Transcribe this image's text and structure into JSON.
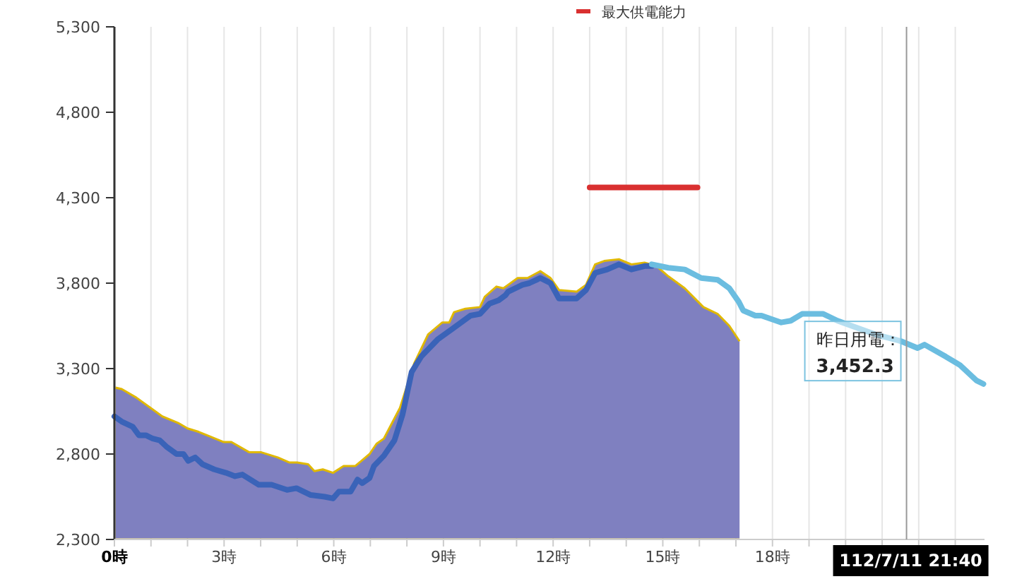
{
  "chart_data": {
    "type": "area",
    "xlim": [
      0,
      23.8
    ],
    "ylim": [
      2300,
      5300
    ],
    "yticks": [
      {
        "value": 2300,
        "label": "2,300"
      },
      {
        "value": 2800,
        "label": "2,800"
      },
      {
        "value": 3300,
        "label": "3,300"
      },
      {
        "value": 3800,
        "label": "3,800"
      },
      {
        "value": 4300,
        "label": "4,300"
      },
      {
        "value": 4800,
        "label": "4,800"
      },
      {
        "value": 5300,
        "label": "5,300"
      }
    ],
    "xticks": [
      {
        "value": 0,
        "label": "0時"
      },
      {
        "value": 1,
        "label": null
      },
      {
        "value": 2,
        "label": null
      },
      {
        "value": 3,
        "label": "3時"
      },
      {
        "value": 4,
        "label": null
      },
      {
        "value": 5,
        "label": null
      },
      {
        "value": 6,
        "label": "6時"
      },
      {
        "value": 7,
        "label": null
      },
      {
        "value": 8,
        "label": null
      },
      {
        "value": 9,
        "label": "9時"
      },
      {
        "value": 10,
        "label": null
      },
      {
        "value": 11,
        "label": null
      },
      {
        "value": 12,
        "label": "12時"
      },
      {
        "value": 13,
        "label": null
      },
      {
        "value": 14,
        "label": null
      },
      {
        "value": 15,
        "label": "15時"
      },
      {
        "value": 16,
        "label": null
      },
      {
        "value": 17,
        "label": null
      },
      {
        "value": 18,
        "label": "18時"
      },
      {
        "value": 19,
        "label": null
      },
      {
        "value": 20,
        "label": null
      },
      {
        "value": 21,
        "label": null
      },
      {
        "value": 22,
        "label": null
      },
      {
        "value": 23,
        "label": null
      }
    ],
    "grid": "x",
    "legend": "top",
    "marker": "none",
    "series": [
      {
        "color": "#7f80c0",
        "x": [
          0,
          0.2,
          0.6,
          0.99,
          1.31,
          1.76,
          2.0,
          2.3,
          2.53,
          2.99,
          3.2,
          3.69,
          4.02,
          4.47,
          4.79,
          5.0,
          5.3,
          5.47,
          5.7,
          5.98,
          6.27,
          6.59,
          6.98,
          7.17,
          7.37,
          7.81,
          8.2,
          8.58,
          8.97,
          9.16,
          9.29,
          9.6,
          10.0,
          10.13,
          10.45,
          10.64,
          10.77,
          11.03,
          11.3,
          11.65,
          11.93,
          12.16,
          12.64,
          12.9,
          13.15,
          13.4,
          13.8,
          14.14,
          14.5,
          14.83,
          15.15,
          15.6,
          16.11,
          16.5,
          16.82,
          17.1
        ],
        "values": [
          3190,
          3180,
          3130,
          3070,
          3020,
          2980,
          2950,
          2930,
          2910,
          2870,
          2870,
          2810,
          2810,
          2780,
          2750,
          2750,
          2740,
          2700,
          2710,
          2690,
          2730,
          2730,
          2800,
          2860,
          2890,
          3070,
          3330,
          3500,
          3570,
          3570,
          3630,
          3650,
          3660,
          3720,
          3780,
          3770,
          3790,
          3830,
          3830,
          3870,
          3830,
          3760,
          3750,
          3790,
          3910,
          3930,
          3940,
          3910,
          3920,
          3900,
          3840,
          3770,
          3660,
          3620,
          3550,
          3460
        ]
      },
      {
        "type": "line",
        "color": "#3a63b8",
        "x": [
          0,
          0.2,
          0.5,
          0.67,
          0.86,
          1.05,
          1.24,
          1.44,
          1.7,
          1.89,
          2.02,
          2.21,
          2.41,
          2.73,
          3.05,
          3.3,
          3.5,
          3.95,
          4.3,
          4.72,
          4.98,
          5.37,
          5.75,
          5.98,
          6.14,
          6.46,
          6.65,
          6.78,
          6.98,
          7.1,
          7.37,
          7.66,
          7.88,
          8.13,
          8.39,
          8.84,
          9.23,
          9.74,
          10.0,
          10.26,
          10.51,
          10.7,
          10.77,
          11.16,
          11.35,
          11.65,
          11.93,
          12.16,
          12.64,
          12.9,
          13.15,
          13.48,
          13.8,
          14.14,
          14.5,
          14.7
        ],
        "values": [
          3020,
          2990,
          2960,
          2910,
          2910,
          2890,
          2880,
          2840,
          2800,
          2800,
          2760,
          2780,
          2740,
          2710,
          2690,
          2670,
          2680,
          2620,
          2620,
          2590,
          2600,
          2560,
          2550,
          2540,
          2580,
          2580,
          2650,
          2630,
          2660,
          2730,
          2790,
          2880,
          3030,
          3280,
          3370,
          3470,
          3530,
          3610,
          3620,
          3680,
          3700,
          3730,
          3750,
          3790,
          3800,
          3830,
          3800,
          3710,
          3710,
          3760,
          3860,
          3880,
          3910,
          3880,
          3900,
          3900
        ]
      },
      {
        "type": "line",
        "color": "#6bbde0",
        "x": [
          14.7,
          15.15,
          15.6,
          16.05,
          16.5,
          16.82,
          17.08,
          17.2,
          17.53,
          17.7,
          18.24,
          18.5,
          18.81,
          19.39,
          19.78,
          20.3,
          20.81,
          21.52,
          21.97,
          22.16,
          22.74,
          23.13,
          23.58,
          23.77
        ],
        "values": [
          3910,
          3890,
          3880,
          3830,
          3820,
          3770,
          3690,
          3640,
          3610,
          3610,
          3570,
          3580,
          3620,
          3620,
          3580,
          3540,
          3500,
          3460,
          3420,
          3440,
          3370,
          3320,
          3230,
          3210
        ]
      },
      {
        "type": "line",
        "name": "最大供電能力",
        "color": "#d93030",
        "x": [
          13.0,
          15.95
        ],
        "values": [
          4360,
          4360
        ]
      }
    ],
    "ref_lines": [
      {
        "axis": "x",
        "value": 21.6667,
        "color": "#999999"
      }
    ],
    "annotations": [
      {
        "text": "昨日用電：\n3,452.3",
        "x": 21.6667,
        "y": 3452.3
      },
      "112/7/11 21:40"
    ]
  }
}
